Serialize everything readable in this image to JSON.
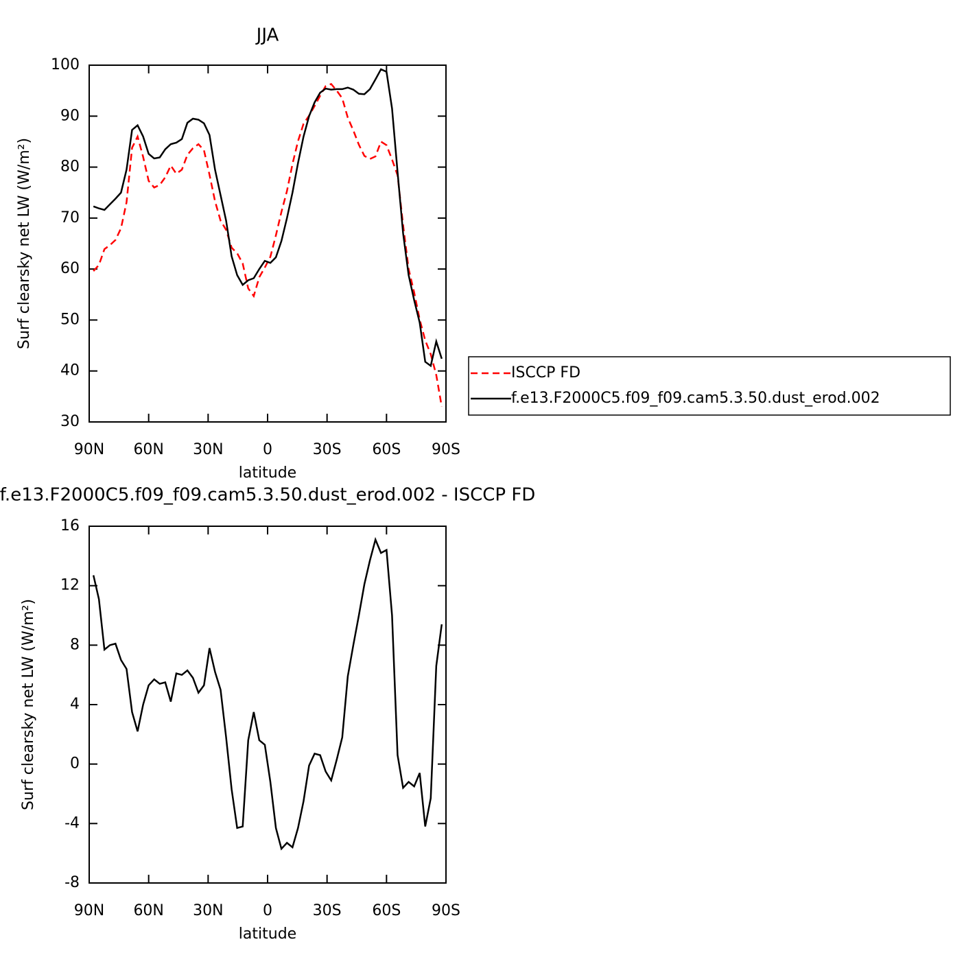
{
  "chart_data": [
    {
      "type": "line",
      "title": "JJA",
      "xlabel": "latitude",
      "ylabel": "Surf clearsky net LW (W/m²)",
      "x": [
        87.86,
        85.1,
        82.31,
        79.53,
        76.74,
        73.95,
        71.16,
        68.37,
        65.58,
        62.79,
        60.0,
        57.21,
        54.42,
        51.63,
        48.84,
        46.05,
        43.25,
        40.46,
        37.67,
        34.88,
        32.09,
        29.3,
        26.51,
        23.72,
        20.93,
        18.14,
        15.35,
        12.56,
        9.77,
        6.98,
        4.19,
        1.4,
        -1.4,
        -4.19,
        -6.98,
        -9.77,
        -12.56,
        -15.35,
        -18.14,
        -20.93,
        -23.72,
        -26.51,
        -29.3,
        -32.09,
        -34.88,
        -37.67,
        -40.46,
        -43.25,
        -46.05,
        -48.84,
        -51.63,
        -54.42,
        -57.21,
        -60.0,
        -62.79,
        -65.58,
        -68.37,
        -71.16,
        -73.95,
        -76.74,
        -79.53,
        -82.31,
        -85.1,
        -87.86
      ],
      "series": [
        {
          "name": "ISCCP FD",
          "color": "#ff0000",
          "dash": true,
          "values": [
            59.6,
            60.8,
            63.9,
            64.7,
            65.7,
            68.0,
            73.1,
            83.8,
            86.0,
            82.0,
            77.3,
            76.0,
            76.5,
            78.0,
            80.3,
            78.7,
            79.5,
            82.4,
            83.7,
            84.5,
            83.3,
            78.5,
            73.3,
            69.5,
            67.7,
            64.2,
            63.1,
            61.1,
            56.2,
            54.7,
            58.4,
            60.3,
            62.4,
            66.6,
            71.2,
            75.3,
            80.6,
            85.1,
            88.5,
            90.1,
            92.0,
            94.0,
            95.9,
            96.3,
            95.0,
            93.5,
            89.7,
            87.2,
            84.4,
            82.2,
            81.6,
            82.1,
            85.0,
            84.3,
            81.5,
            78.4,
            68.6,
            60.0,
            55.4,
            50.1,
            46.0,
            43.3,
            39.2,
            33.0
          ]
        },
        {
          "name": "f.e13.F2000C5.f09_f09.cam5.3.50.dust_erod.002",
          "color": "#000000",
          "dash": false,
          "values": [
            72.3,
            71.9,
            71.6,
            72.7,
            73.8,
            75.0,
            79.5,
            87.3,
            88.2,
            86.0,
            82.6,
            81.7,
            81.9,
            83.5,
            84.5,
            84.8,
            85.5,
            88.7,
            89.5,
            89.3,
            88.6,
            86.3,
            79.5,
            74.5,
            69.5,
            62.5,
            58.8,
            56.9,
            57.8,
            58.2,
            60.0,
            61.6,
            61.2,
            62.3,
            65.5,
            70.0,
            75.0,
            80.8,
            86.0,
            90.0,
            92.7,
            94.6,
            95.4,
            95.2,
            95.3,
            95.3,
            95.6,
            95.2,
            94.4,
            94.3,
            95.3,
            97.2,
            99.2,
            98.7,
            91.5,
            79.0,
            67.0,
            58.8,
            53.9,
            49.5,
            41.8,
            41.0,
            45.8,
            42.4
          ]
        }
      ],
      "xlim": [
        90,
        -90
      ],
      "ylim": [
        30,
        100
      ],
      "xticks": [
        {
          "value": 90,
          "label": "90N"
        },
        {
          "value": 60,
          "label": "60N"
        },
        {
          "value": 30,
          "label": "30N"
        },
        0,
        {
          "value": -30,
          "label": "30S"
        },
        {
          "value": -60,
          "label": "60S"
        },
        {
          "value": -90,
          "label": "90S"
        }
      ],
      "yticks": [
        30,
        40,
        50,
        60,
        70,
        80,
        90,
        100
      ],
      "legend": "right"
    },
    {
      "type": "line",
      "title": "f.e13.F2000C5.f09_f09.cam5.3.50.dust_erod.002 - ISCCP FD",
      "xlabel": "latitude",
      "ylabel": "Surf clearsky net LW (W/m²)",
      "x": [
        87.86,
        85.1,
        82.31,
        79.53,
        76.74,
        73.95,
        71.16,
        68.37,
        65.58,
        62.79,
        60.0,
        57.21,
        54.42,
        51.63,
        48.84,
        46.05,
        43.25,
        40.46,
        37.67,
        34.88,
        32.09,
        29.3,
        26.51,
        23.72,
        20.93,
        18.14,
        15.35,
        12.56,
        9.77,
        6.98,
        4.19,
        1.4,
        -1.4,
        -4.19,
        -6.98,
        -9.77,
        -12.56,
        -15.35,
        -18.14,
        -20.93,
        -23.72,
        -26.51,
        -29.3,
        -32.09,
        -34.88,
        -37.67,
        -40.46,
        -43.25,
        -46.05,
        -48.84,
        -51.63,
        -54.42,
        -57.21,
        -60.0,
        -62.79,
        -65.58,
        -68.37,
        -71.16,
        -73.95,
        -76.74,
        -79.53,
        -82.31,
        -85.1,
        -87.86
      ],
      "series": [
        {
          "color": "#000000",
          "dash": false,
          "values": [
            12.7,
            11.1,
            7.7,
            8.0,
            8.1,
            7.0,
            6.4,
            3.5,
            2.2,
            4.0,
            5.3,
            5.7,
            5.4,
            5.5,
            4.2,
            6.1,
            6.0,
            6.3,
            5.8,
            4.8,
            5.3,
            7.8,
            6.2,
            5.0,
            1.8,
            -1.7,
            -4.3,
            -4.2,
            1.6,
            3.5,
            1.6,
            1.3,
            -1.2,
            -4.3,
            -5.7,
            -5.3,
            -5.6,
            -4.3,
            -2.5,
            -0.1,
            0.7,
            0.6,
            -0.5,
            -1.1,
            0.3,
            1.8,
            5.9,
            8.0,
            10.0,
            12.1,
            13.7,
            15.1,
            14.2,
            14.4,
            10.0,
            0.6,
            -1.6,
            -1.2,
            -1.5,
            -0.6,
            -4.2,
            -2.3,
            6.6,
            9.4
          ]
        }
      ],
      "xlim": [
        90,
        -90
      ],
      "ylim": [
        -8,
        16
      ],
      "xticks": [
        {
          "value": 90,
          "label": "90N"
        },
        {
          "value": 60,
          "label": "60N"
        },
        {
          "value": 30,
          "label": "30N"
        },
        0,
        {
          "value": -30,
          "label": "30S"
        },
        {
          "value": -60,
          "label": "60S"
        },
        {
          "value": -90,
          "label": "90S"
        }
      ],
      "yticks": [
        -8,
        -4,
        0,
        4,
        8,
        12,
        16
      ]
    }
  ]
}
